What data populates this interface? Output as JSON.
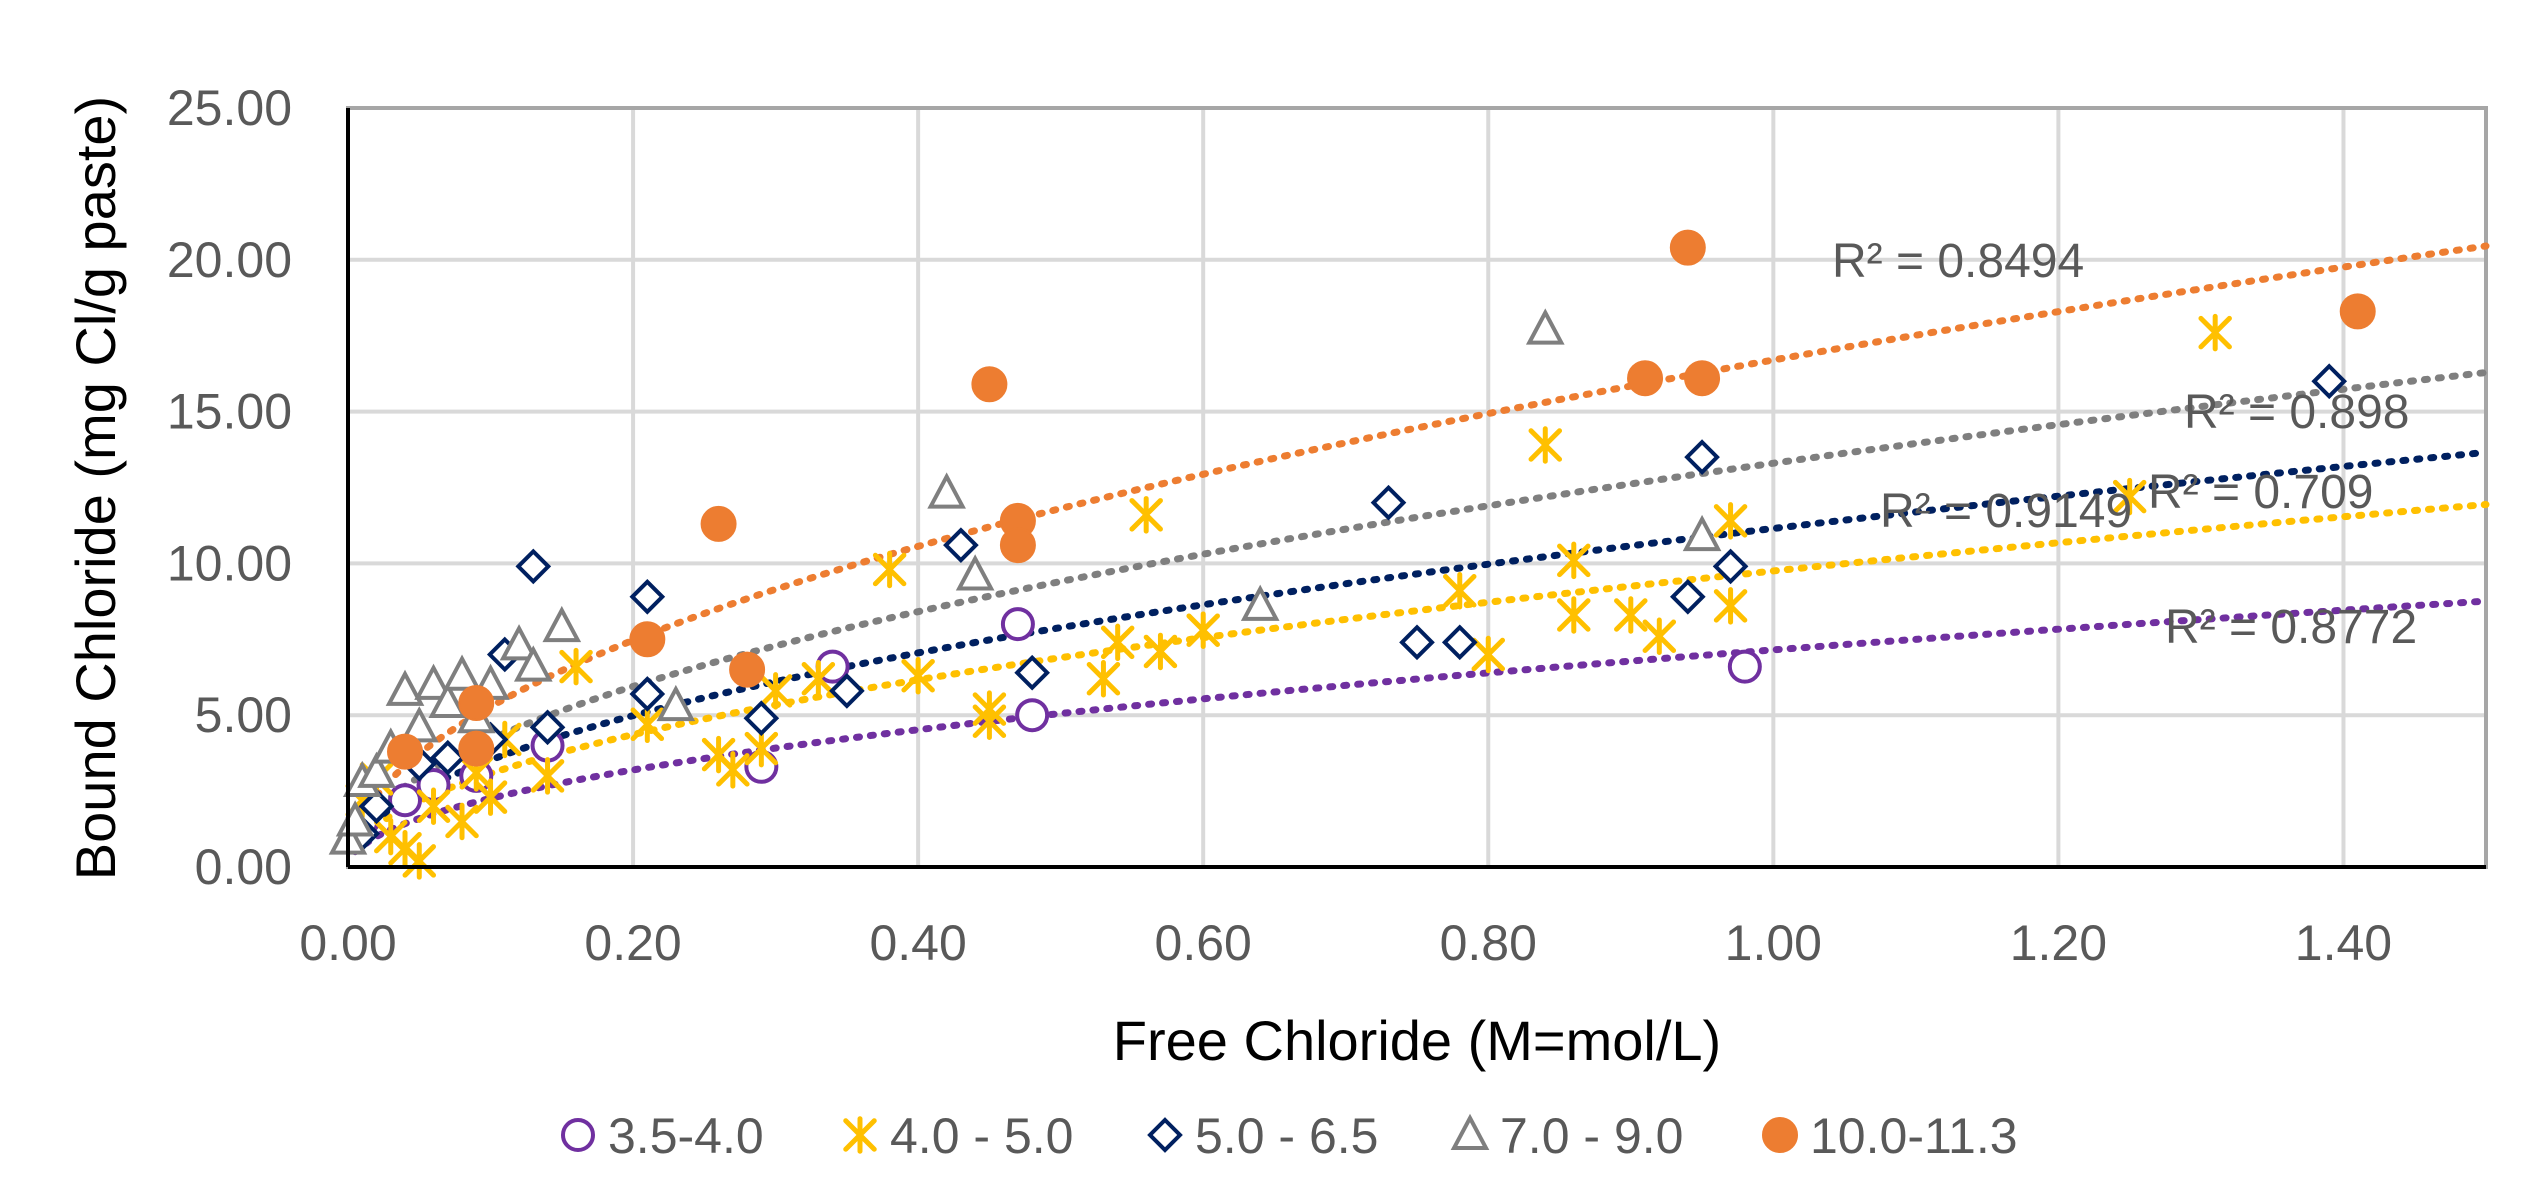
{
  "chart_data": {
    "type": "scatter",
    "title": "",
    "xlabel": "Free Chloride (M=mol/L)",
    "ylabel": "Bound Chloride (mg Cl/g paste)",
    "xlim": [
      0,
      1.5
    ],
    "ylim": [
      0,
      25
    ],
    "x_ticks": [
      "0.00",
      "0.20",
      "0.40",
      "0.60",
      "0.80",
      "1.00",
      "1.20",
      "1.40"
    ],
    "y_ticks": [
      "0.00",
      "5.00",
      "10.00",
      "15.00",
      "20.00",
      "25.00"
    ],
    "grid": true,
    "legend_position": "bottom",
    "series": [
      {
        "name": "3.5-4.0",
        "marker": "circle-open",
        "color": "#7030A0",
        "points": [
          [
            0.01,
            1.5
          ],
          [
            0.04,
            2.2
          ],
          [
            0.06,
            2.7
          ],
          [
            0.09,
            3.0
          ],
          [
            0.14,
            4.0
          ],
          [
            0.29,
            3.3
          ],
          [
            0.34,
            6.6
          ],
          [
            0.47,
            8.0
          ],
          [
            0.48,
            5.0
          ],
          [
            0.98,
            6.6
          ]
        ],
        "trend": {
          "a": 7.15,
          "b": 0.5,
          "r2_text": "R² = 0.8772"
        }
      },
      {
        "name": "4.0 - 5.0",
        "marker": "asterisk",
        "color": "#FFC000",
        "points": [
          [
            0.01,
            2.2
          ],
          [
            0.02,
            2.9
          ],
          [
            0.03,
            1.0
          ],
          [
            0.04,
            0.6
          ],
          [
            0.05,
            0.2
          ],
          [
            0.06,
            2.0
          ],
          [
            0.08,
            1.5
          ],
          [
            0.09,
            3.1
          ],
          [
            0.1,
            2.3
          ],
          [
            0.11,
            4.2
          ],
          [
            0.14,
            3.0
          ],
          [
            0.16,
            6.6
          ],
          [
            0.21,
            4.7
          ],
          [
            0.26,
            3.7
          ],
          [
            0.27,
            3.2
          ],
          [
            0.29,
            3.9
          ],
          [
            0.3,
            5.8
          ],
          [
            0.33,
            6.2
          ],
          [
            0.38,
            9.8
          ],
          [
            0.4,
            6.3
          ],
          [
            0.45,
            5.2
          ],
          [
            0.45,
            4.8
          ],
          [
            0.53,
            6.2
          ],
          [
            0.54,
            7.4
          ],
          [
            0.56,
            11.6
          ],
          [
            0.57,
            7.1
          ],
          [
            0.6,
            7.8
          ],
          [
            0.78,
            9.1
          ],
          [
            0.8,
            7.0
          ],
          [
            0.84,
            13.9
          ],
          [
            0.86,
            10.1
          ],
          [
            0.86,
            8.3
          ],
          [
            0.9,
            8.3
          ],
          [
            0.92,
            7.6
          ],
          [
            0.97,
            11.4
          ],
          [
            0.97,
            8.6
          ],
          [
            1.25,
            12.2
          ],
          [
            1.31,
            17.6
          ]
        ],
        "trend": {
          "a": 9.75,
          "b": 0.5,
          "r2_text": "R² = 0.709"
        }
      },
      {
        "name": "5.0 - 6.5",
        "marker": "diamond-open",
        "color": "#002060",
        "points": [
          [
            0.01,
            1.1
          ],
          [
            0.02,
            2.0
          ],
          [
            0.05,
            3.4
          ],
          [
            0.07,
            3.6
          ],
          [
            0.1,
            4.2
          ],
          [
            0.11,
            7.0
          ],
          [
            0.13,
            9.9
          ],
          [
            0.14,
            4.6
          ],
          [
            0.21,
            8.9
          ],
          [
            0.21,
            5.7
          ],
          [
            0.29,
            4.9
          ],
          [
            0.35,
            5.8
          ],
          [
            0.43,
            10.6
          ],
          [
            0.48,
            6.4
          ],
          [
            0.73,
            12.0
          ],
          [
            0.75,
            7.4
          ],
          [
            0.78,
            7.4
          ],
          [
            0.94,
            8.9
          ],
          [
            0.95,
            13.5
          ],
          [
            0.97,
            9.9
          ],
          [
            1.39,
            16.0
          ]
        ],
        "trend": {
          "a": 11.15,
          "b": 0.5,
          "r2_text": "R² = 0.9149"
        }
      },
      {
        "name": "7.0 - 9.0",
        "marker": "triangle-open",
        "color": "#7F7F7F",
        "points": [
          [
            0.0,
            0.9
          ],
          [
            0.005,
            1.5
          ],
          [
            0.01,
            2.8
          ],
          [
            0.02,
            3.1
          ],
          [
            0.03,
            3.9
          ],
          [
            0.04,
            5.8
          ],
          [
            0.05,
            4.6
          ],
          [
            0.06,
            6.0
          ],
          [
            0.07,
            5.4
          ],
          [
            0.08,
            6.3
          ],
          [
            0.09,
            4.9
          ],
          [
            0.1,
            6.0
          ],
          [
            0.12,
            7.3
          ],
          [
            0.13,
            6.6
          ],
          [
            0.15,
            7.9
          ],
          [
            0.23,
            5.3
          ],
          [
            0.42,
            12.3
          ],
          [
            0.44,
            9.6
          ],
          [
            0.64,
            8.6
          ],
          [
            0.84,
            17.7
          ],
          [
            0.95,
            10.9
          ]
        ],
        "trend": {
          "a": 13.3,
          "b": 0.5,
          "r2_text": "R² = 0.898"
        }
      },
      {
        "name": "10.0-11.3",
        "marker": "circle-filled",
        "color": "#ED7D31",
        "points": [
          [
            0.04,
            3.8
          ],
          [
            0.09,
            5.4
          ],
          [
            0.09,
            3.9
          ],
          [
            0.21,
            7.5
          ],
          [
            0.26,
            11.3
          ],
          [
            0.28,
            6.5
          ],
          [
            0.45,
            15.9
          ],
          [
            0.47,
            11.4
          ],
          [
            0.47,
            10.6
          ],
          [
            0.91,
            16.1
          ],
          [
            0.94,
            20.4
          ],
          [
            0.95,
            16.1
          ],
          [
            1.41,
            18.3
          ]
        ],
        "trend": {
          "a": 16.7,
          "b": 0.5,
          "r2_text": "R² = 0.8494"
        }
      }
    ]
  }
}
